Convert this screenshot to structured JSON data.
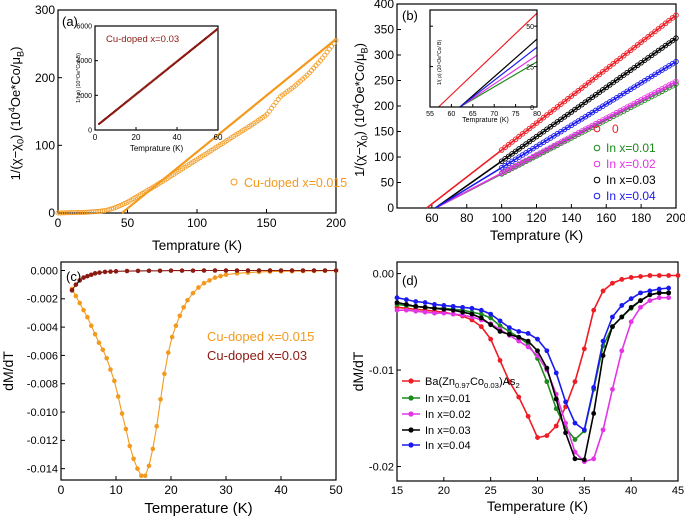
{
  "figure": {
    "description": "Four-panel magnetic data figure",
    "colors": {
      "orange": "#f39a1e",
      "darkred": "#8b1a12",
      "red": "#ee1c24",
      "green": "#1c8a1c",
      "magenta": "#e434e6",
      "black": "#000000",
      "blue": "#1a1aee"
    }
  },
  "chart_data": [
    {
      "id": "a",
      "type": "scatter",
      "panel_label": "(a)",
      "xlabel": "Temprature (K)",
      "ylabel_parts": [
        "1/(",
        "χ",
        "−",
        "χ",
        "0",
        ") (10",
        "4",
        "Oe*Co/",
        "μ",
        "B",
        ")"
      ],
      "xlim": [
        0,
        200
      ],
      "ylim": [
        0,
        300
      ],
      "xticks": [
        0,
        50,
        100,
        150,
        200
      ],
      "yticks": [
        0,
        100,
        200,
        300
      ],
      "series": [
        {
          "name": "Cu-doped x=0.015",
          "marker": "open-circle",
          "color": "#f39a1e",
          "x": [
            0,
            10,
            20,
            30,
            35,
            40,
            45,
            50,
            55,
            60,
            70,
            80,
            90,
            100,
            110,
            120,
            130,
            140,
            150,
            160,
            170,
            180,
            190,
            200
          ],
          "y": [
            0,
            0.5,
            1,
            2.5,
            4,
            7,
            11,
            16,
            22,
            28,
            40,
            53,
            66,
            79,
            92,
            105,
            118,
            131,
            145,
            172,
            187,
            205,
            228,
            255
          ]
        }
      ],
      "fit": {
        "x": [
          46,
          200
        ],
        "y": [
          0,
          257
        ]
      },
      "legend": {
        "label": "Cu-doped x=0.015",
        "position": "center-right"
      },
      "inset": {
        "title": "Cu-doped x=0.03",
        "xlabel": "Temprature (K)",
        "ylabel": "1/(  ρ) (10⁴Oe*Co/  B)",
        "xlim": [
          0,
          60
        ],
        "ylim": [
          0,
          6000
        ],
        "xticks": [
          0,
          20,
          40,
          60
        ],
        "yticks": [
          0,
          2000,
          4000,
          6000
        ],
        "series": {
          "color": "#8b1a12",
          "x0": 2,
          "y0": 350,
          "x1": 60,
          "y1": 5850
        }
      }
    },
    {
      "id": "b",
      "type": "scatter",
      "panel_label": "(b)",
      "xlabel": "Temprature (K)",
      "ylabel_parts": [
        "1/(",
        "χ",
        "−",
        "χ",
        "0",
        ") (10",
        "4",
        "Oe*Co/",
        "μ",
        "B",
        ")"
      ],
      "xlim": [
        40,
        200
      ],
      "ylim": [
        0,
        400
      ],
      "xticks": [
        60,
        80,
        100,
        120,
        140,
        160,
        180,
        200
      ],
      "yticks": [
        0,
        50,
        100,
        150,
        200,
        250,
        300,
        350,
        400
      ],
      "series": [
        {
          "name": "0",
          "color": "#ee1c24",
          "x_range": [
            100,
            200
          ],
          "fit_x": [
            57,
            200
          ],
          "fit_y": [
            0,
            378
          ]
        },
        {
          "name": "In x=0.01",
          "color": "#1c8a1c",
          "x_range": [
            100,
            200
          ],
          "fit_x": [
            62,
            200
          ],
          "fit_y": [
            0,
            243
          ]
        },
        {
          "name": "In x=0.02",
          "color": "#e434e6",
          "x_range": [
            100,
            200
          ],
          "fit_x": [
            62,
            200
          ],
          "fit_y": [
            0,
            248
          ]
        },
        {
          "name": "In x=0.03",
          "color": "#000000",
          "x_range": [
            100,
            200
          ],
          "fit_x": [
            62,
            200
          ],
          "fit_y": [
            0,
            333
          ]
        },
        {
          "name": "In x=0.04",
          "color": "#1a1aee",
          "x_range": [
            100,
            200
          ],
          "fit_x": [
            62,
            200
          ],
          "fit_y": [
            0,
            287
          ]
        }
      ],
      "legend_position": "bottom-right",
      "inset": {
        "xlabel": "Temprature (K)",
        "ylabel": "1/(  ρ) (10⁴Oe*Co/  B)",
        "xlim": [
          55,
          80
        ],
        "ylim": [
          0,
          60
        ],
        "xticks": [
          55,
          60,
          65,
          70,
          75,
          80
        ],
        "yticks": [
          0,
          25,
          50
        ],
        "lines": [
          {
            "color": "#ee1c24",
            "x0": 57,
            "x1": 80,
            "y1": 58
          },
          {
            "color": "#1c8a1c",
            "x0": 62,
            "x1": 80,
            "y1": 28
          },
          {
            "color": "#e434e6",
            "x0": 62,
            "x1": 80,
            "y1": 32
          },
          {
            "color": "#000000",
            "x0": 62,
            "x1": 80,
            "y1": 42
          },
          {
            "color": "#1a1aee",
            "x0": 62,
            "x1": 80,
            "y1": 37
          }
        ]
      }
    },
    {
      "id": "c",
      "type": "line",
      "panel_label": "(c)",
      "xlabel": "Temperature (K)",
      "ylabel": "dM/dT",
      "xlim": [
        0,
        50
      ],
      "ylim": [
        -0.0148,
        0.0006
      ],
      "xticks": [
        0,
        10,
        20,
        30,
        40,
        50
      ],
      "yticks": [
        0.0,
        -0.002,
        -0.004,
        -0.006,
        -0.008,
        -0.01,
        -0.012,
        -0.014
      ],
      "ytick_labels": [
        "0.000",
        "-0.002",
        "-0.004",
        "-0.006",
        "-0.008",
        "-0.010",
        "-0.012",
        "-0.014"
      ],
      "series": [
        {
          "name": "Cu-doped x=0.015",
          "color": "#f39a1e",
          "x": [
            2,
            2.7,
            3.4,
            4.1,
            4.8,
            5.5,
            6.2,
            6.9,
            7.6,
            8.3,
            9,
            9.7,
            10.4,
            11.1,
            11.8,
            12.5,
            13.2,
            13.9,
            14.6,
            15.3,
            16,
            16.7,
            17.4,
            18.1,
            18.8,
            19.5,
            20.2,
            20.9,
            21.6,
            22.3,
            23,
            24,
            25,
            26,
            27,
            28,
            29,
            30,
            32,
            34,
            36,
            38,
            40,
            42,
            44,
            46,
            48,
            50
          ],
          "y": [
            -0.0013,
            -0.0018,
            -0.0023,
            -0.0028,
            -0.0033,
            -0.0039,
            -0.0045,
            -0.0051,
            -0.0056,
            -0.0062,
            -0.007,
            -0.0078,
            -0.0089,
            -0.0101,
            -0.0112,
            -0.0124,
            -0.0133,
            -0.014,
            -0.0145,
            -0.0145,
            -0.0138,
            -0.0126,
            -0.011,
            -0.0091,
            -0.0073,
            -0.0058,
            -0.0047,
            -0.0039,
            -0.0032,
            -0.0026,
            -0.0021,
            -0.0016,
            -0.0012,
            -0.0009,
            -0.0007,
            -0.0005,
            -0.0004,
            -0.0003,
            -0.0002,
            -0.00015,
            -0.0001,
            -8e-05,
            -6e-05,
            -5e-05,
            -4e-05,
            -3e-05,
            -2e-05,
            -1e-05
          ]
        },
        {
          "name": "Cu-doped x=0.03",
          "color": "#8b1a12",
          "x": [
            2,
            2.7,
            3.4,
            4.1,
            4.8,
            5.5,
            6.2,
            7,
            8,
            9,
            10,
            12,
            14,
            16,
            18,
            20,
            22,
            24,
            26,
            28,
            30,
            32,
            34,
            36,
            38,
            40,
            42,
            44,
            46,
            48,
            50
          ],
          "y": [
            -0.0014,
            -0.001,
            -0.0007,
            -0.0005,
            -0.0004,
            -0.0003,
            -0.0002,
            -0.00015,
            -0.0001,
            -8e-05,
            -6e-05,
            -4e-05,
            -3e-05,
            -2e-05,
            -2e-05,
            -1e-05,
            -1e-05,
            -1e-05,
            0,
            0,
            0,
            0,
            0,
            0,
            0,
            0,
            0,
            0,
            0,
            0,
            0
          ]
        }
      ],
      "legend_position": "center-right"
    },
    {
      "id": "d",
      "type": "line",
      "panel_label": "(d)",
      "xlabel": "Temperature (K)",
      "ylabel": "dM/dT",
      "xlim": [
        15,
        45
      ],
      "ylim": [
        -0.0215,
        0.0012
      ],
      "xticks": [
        15,
        20,
        25,
        30,
        35,
        40,
        45
      ],
      "yticks": [
        0.0,
        -0.01,
        -0.02
      ],
      "ytick_labels": [
        "0.00",
        "-0.01",
        "-0.02"
      ],
      "series": [
        {
          "name": "Ba(Zn0.97Co0.03)As2",
          "label_parts": [
            "Ba(Zn",
            "0.97",
            "Co",
            "0.03",
            ")As",
            "2"
          ],
          "color": "#ee1c24",
          "x": [
            15,
            16,
            17,
            18,
            19,
            20,
            21,
            22,
            23,
            24,
            25,
            26,
            27,
            28,
            29,
            30,
            31,
            32,
            33,
            34,
            35,
            36,
            37,
            38,
            39,
            40,
            41,
            42,
            43,
            44,
            45
          ],
          "y": [
            -0.0035,
            -0.0036,
            -0.0037,
            -0.0038,
            -0.0039,
            -0.004,
            -0.0042,
            -0.0044,
            -0.0048,
            -0.0055,
            -0.0068,
            -0.009,
            -0.0112,
            -0.0128,
            -0.0148,
            -0.017,
            -0.0168,
            -0.0158,
            -0.0138,
            -0.0112,
            -0.0078,
            -0.0038,
            -0.0018,
            -0.001,
            -0.0006,
            -0.0004,
            -0.0003,
            -0.0002,
            -0.0002,
            -0.0002,
            -0.0002
          ]
        },
        {
          "name": "In x=0.01",
          "color": "#1c8a1c",
          "x": [
            15,
            16,
            17,
            18,
            19,
            20,
            21,
            22,
            23,
            24,
            25,
            26,
            27,
            28,
            29,
            30,
            31,
            32,
            33,
            34,
            35,
            36,
            37,
            38,
            39,
            40,
            41,
            42,
            43,
            44
          ],
          "y": [
            -0.0032,
            -0.0033,
            -0.0034,
            -0.0035,
            -0.0036,
            -0.0036,
            -0.0037,
            -0.0038,
            -0.004,
            -0.0042,
            -0.0046,
            -0.0054,
            -0.006,
            -0.0066,
            -0.0073,
            -0.0088,
            -0.0112,
            -0.014,
            -0.016,
            -0.0172,
            -0.0163,
            -0.012,
            -0.0075,
            -0.0055,
            -0.0045,
            -0.0036,
            -0.0028,
            -0.0022,
            -0.002,
            -0.002
          ]
        },
        {
          "name": "In x=0.02",
          "color": "#e434e6",
          "x": [
            15,
            16,
            17,
            18,
            19,
            20,
            21,
            22,
            23,
            24,
            25,
            26,
            27,
            28,
            29,
            30,
            31,
            32,
            33,
            34,
            35,
            36,
            37,
            38,
            39,
            40,
            41,
            42,
            43,
            44
          ],
          "y": [
            -0.0038,
            -0.0038,
            -0.0039,
            -0.004,
            -0.0041,
            -0.0041,
            -0.0042,
            -0.0043,
            -0.0045,
            -0.0048,
            -0.0052,
            -0.0058,
            -0.0064,
            -0.007,
            -0.0076,
            -0.0085,
            -0.01,
            -0.0125,
            -0.0155,
            -0.0185,
            -0.0195,
            -0.0192,
            -0.0162,
            -0.012,
            -0.008,
            -0.005,
            -0.0035,
            -0.0028,
            -0.0025,
            -0.0025
          ]
        },
        {
          "name": "In x=0.03",
          "color": "#000000",
          "x": [
            15,
            16,
            17,
            18,
            19,
            20,
            21,
            22,
            23,
            24,
            25,
            26,
            27,
            28,
            29,
            30,
            31,
            32,
            33,
            34,
            35,
            36,
            37,
            38,
            39,
            40,
            41,
            42,
            43,
            44
          ],
          "y": [
            -0.003,
            -0.0032,
            -0.0034,
            -0.0035,
            -0.0036,
            -0.0037,
            -0.0038,
            -0.004,
            -0.0042,
            -0.0046,
            -0.0053,
            -0.006,
            -0.0063,
            -0.0066,
            -0.007,
            -0.008,
            -0.0098,
            -0.013,
            -0.0165,
            -0.0192,
            -0.0193,
            -0.0145,
            -0.0085,
            -0.0055,
            -0.0045,
            -0.0035,
            -0.0028,
            -0.0022,
            -0.002,
            -0.002
          ]
        },
        {
          "name": "In x=0.04",
          "color": "#1a1aee",
          "x": [
            15,
            16,
            17,
            18,
            19,
            20,
            21,
            22,
            23,
            24,
            25,
            26,
            27,
            28,
            29,
            30,
            31,
            32,
            33,
            34,
            35,
            36,
            37,
            38,
            39,
            40,
            41,
            42,
            43,
            44
          ],
          "y": [
            -0.0025,
            -0.0027,
            -0.0029,
            -0.003,
            -0.0032,
            -0.0033,
            -0.0034,
            -0.0035,
            -0.0036,
            -0.0038,
            -0.0042,
            -0.0049,
            -0.0056,
            -0.006,
            -0.0062,
            -0.0068,
            -0.008,
            -0.0103,
            -0.0133,
            -0.0155,
            -0.0162,
            -0.0118,
            -0.007,
            -0.0045,
            -0.0033,
            -0.0026,
            -0.002,
            -0.0018,
            -0.0016,
            -0.0015
          ]
        }
      ],
      "legend_position": "center-left"
    }
  ]
}
